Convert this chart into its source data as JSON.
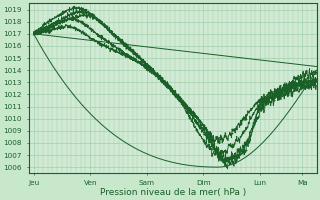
{
  "background_color": "#c8e8cc",
  "plot_bg_color": "#d0ead4",
  "grid_color": "#98c8a0",
  "line_color": "#1a5e28",
  "xlabel": "Pression niveau de la mer( hPa )",
  "x_labels": [
    "Jeu",
    "Ven",
    "Sam",
    "Dim",
    "Lun",
    "Ma"
  ],
  "x_ticks": [
    0,
    24,
    48,
    72,
    96,
    114
  ],
  "ylim": [
    1005.5,
    1019.5
  ],
  "xlim": [
    -2,
    120
  ],
  "yticks": [
    1006,
    1007,
    1008,
    1009,
    1010,
    1011,
    1012,
    1013,
    1014,
    1015,
    1016,
    1017,
    1018,
    1019
  ],
  "label_fontsize": 6.5,
  "tick_fontsize": 5.2
}
